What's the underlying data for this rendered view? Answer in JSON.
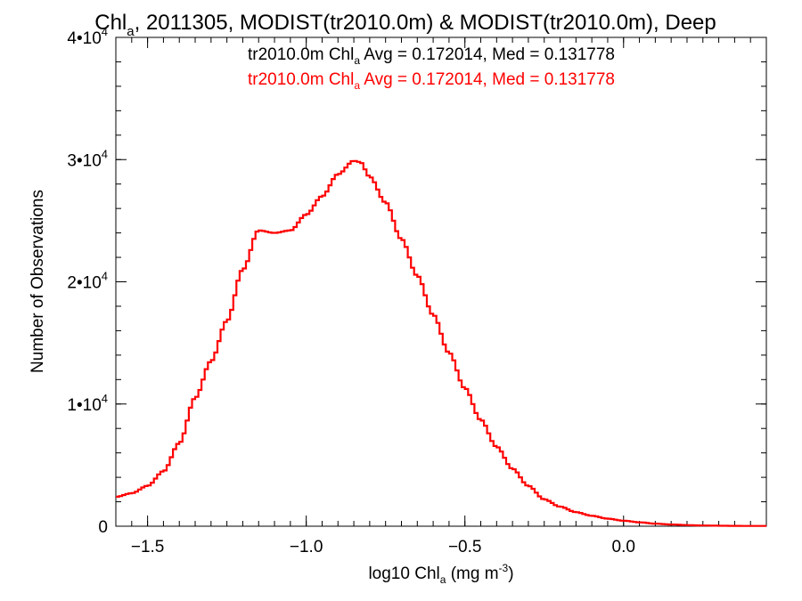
{
  "chart_data": {
    "type": "line",
    "title": {
      "pre": "Chl",
      "sub": "a",
      "post": ", 2011305, MODIST(tr2010.0m) & MODIST(tr2010.0m), Deep"
    },
    "xlabel": {
      "pre": "log10 Chl",
      "sub": "a",
      "mid": " (mg m",
      "sup": "-3",
      "post": ")"
    },
    "ylabel": "Number of Observations",
    "xlim": [
      -1.6,
      0.45
    ],
    "ylim": [
      0,
      40000
    ],
    "x_ticks": [
      {
        "value": -1.5,
        "label": "−1.5"
      },
      {
        "value": -1.0,
        "label": "−1.0"
      },
      {
        "value": -0.5,
        "label": "−0.5"
      },
      {
        "value": 0.0,
        "label": "0.0"
      }
    ],
    "y_ticks": [
      {
        "value": 0,
        "label": "0",
        "power": ""
      },
      {
        "value": 10000,
        "label": "1•10",
        "power": "4"
      },
      {
        "value": 20000,
        "label": "2•10",
        "power": "4"
      },
      {
        "value": 30000,
        "label": "3•10",
        "power": "4"
      },
      {
        "value": 40000,
        "label": "4•10",
        "power": "4"
      }
    ],
    "annotations": [
      {
        "pre": "tr2010.0m Chl",
        "sub": "a",
        "post": " Avg = 0.172014, Med = 0.131778",
        "color": "#000000"
      },
      {
        "pre": "tr2010.0m Chl",
        "sub": "a",
        "post": " Avg = 0.172014, Med = 0.131778",
        "color": "#ff0000"
      }
    ],
    "series": [
      {
        "color": "#ff0000",
        "step": true,
        "x": [
          -1.6,
          -1.55,
          -1.5,
          -1.45,
          -1.4,
          -1.35,
          -1.3,
          -1.25,
          -1.2,
          -1.15,
          -1.1,
          -1.05,
          -1.0,
          -0.95,
          -0.9,
          -0.85,
          -0.83,
          -0.8,
          -0.75,
          -0.7,
          -0.65,
          -0.6,
          -0.55,
          -0.5,
          -0.45,
          -0.4,
          -0.35,
          -0.3,
          -0.25,
          -0.2,
          -0.15,
          -0.1,
          -0.05,
          0.0,
          0.05,
          0.1,
          0.15,
          0.2,
          0.25,
          0.3,
          0.35,
          0.4,
          0.45
        ],
        "values": [
          2400,
          2700,
          3300,
          4500,
          6800,
          10500,
          13500,
          16800,
          21000,
          24200,
          24000,
          24200,
          25500,
          27000,
          28800,
          29900,
          29800,
          28600,
          26500,
          23500,
          20500,
          17300,
          14200,
          11300,
          8700,
          6500,
          4700,
          3300,
          2200,
          1600,
          1150,
          850,
          620,
          450,
          320,
          210,
          140,
          90,
          60,
          40,
          30,
          20,
          20
        ]
      }
    ]
  }
}
